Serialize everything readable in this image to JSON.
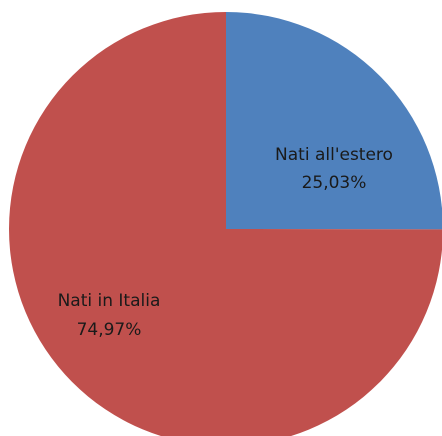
{
  "chart_data": {
    "type": "pie",
    "slices": [
      {
        "name": "Nati all'estero",
        "value": 25.03,
        "value_label": "25,03%",
        "color": "#4f81bd"
      },
      {
        "name": "Nati in Italia",
        "value": 74.97,
        "value_label": "74,97%",
        "color": "#c0504d"
      }
    ]
  }
}
